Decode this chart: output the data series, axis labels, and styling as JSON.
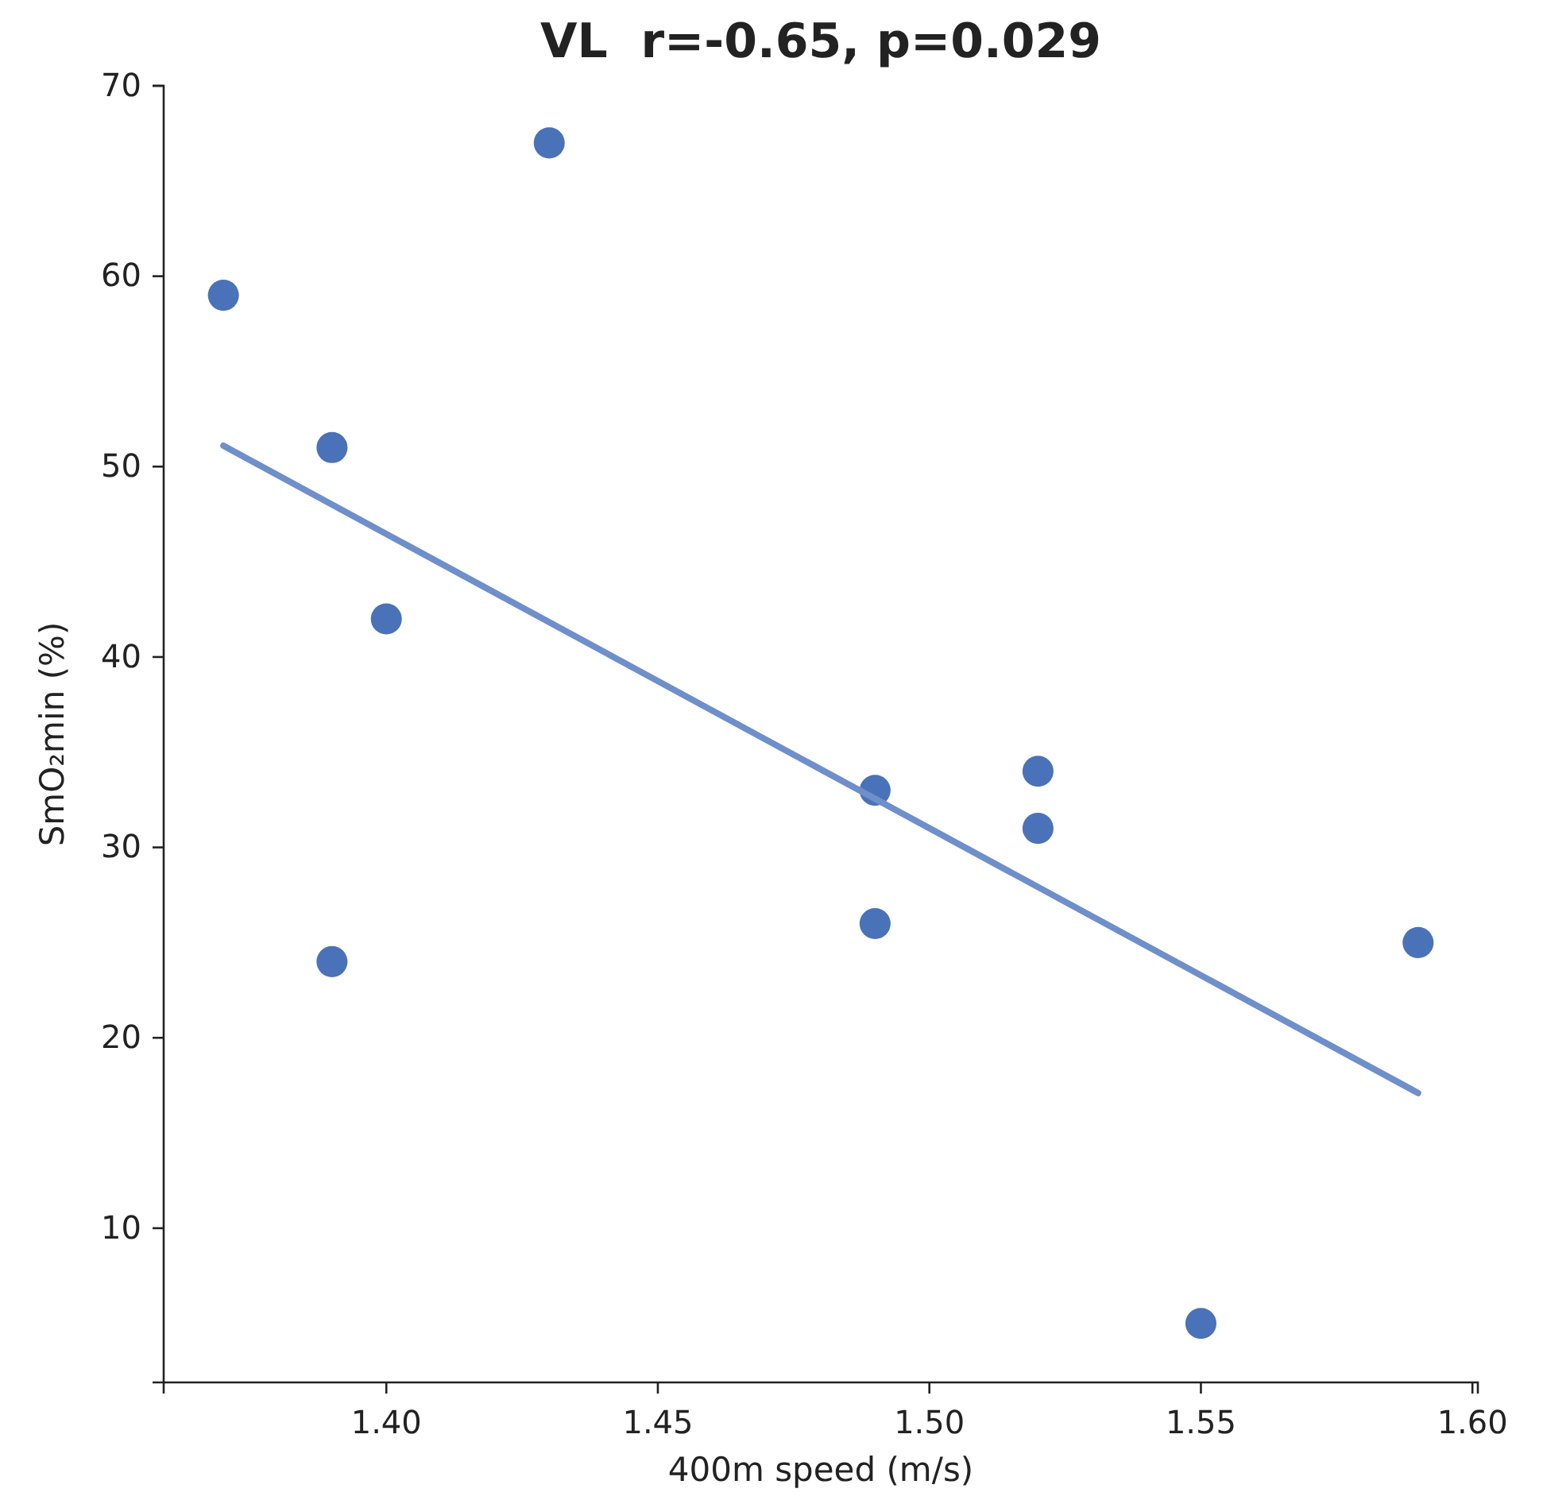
{
  "chart_data": {
    "type": "scatter",
    "title": "VL  r=-0.65, p=0.029",
    "xlabel": "400m speed (m/s)",
    "ylabel": "SmO₂min (%)",
    "xlim": [
      1.359,
      1.601
    ],
    "xticks": [
      {
        "value": 1.4,
        "label": "1.40"
      },
      {
        "value": 1.45,
        "label": "1.45"
      },
      {
        "value": 1.5,
        "label": "1.50"
      },
      {
        "value": 1.55,
        "label": "1.55"
      },
      {
        "value": 1.6,
        "label": "1.60"
      }
    ],
    "ylim": [
      1.9,
      70
    ],
    "yticks": [
      10,
      20,
      30,
      40,
      50,
      60,
      70
    ],
    "grid": false,
    "marker": "circle",
    "series": [
      {
        "color": "#4a72b8",
        "x": [
          1.37,
          1.39,
          1.39,
          1.4,
          1.43,
          1.49,
          1.49,
          1.52,
          1.52,
          1.55,
          1.59
        ],
        "values": [
          59,
          51,
          24,
          42,
          67,
          33,
          26,
          34,
          31,
          5,
          25
        ]
      },
      {
        "type": "line",
        "color": "#6f8fcb",
        "x": [
          1.37,
          1.59
        ],
        "values": [
          51.1,
          17.1
        ],
        "marker": "none",
        "line_style": "solid"
      }
    ]
  }
}
